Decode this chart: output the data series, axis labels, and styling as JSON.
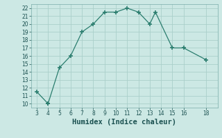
{
  "x": [
    3,
    4,
    4,
    5,
    6,
    7,
    8,
    9,
    10,
    11,
    12,
    13,
    13.5,
    15,
    16,
    18
  ],
  "y": [
    11.5,
    10,
    10,
    14.5,
    16,
    19,
    20,
    21.5,
    21.5,
    22,
    21.5,
    20,
    21.5,
    17,
    17,
    15.5
  ],
  "line_color": "#2a7d6e",
  "marker": "+",
  "marker_size": 4,
  "marker_lw": 1.2,
  "bg_color": "#cce8e4",
  "grid_color": "#aacfca",
  "xlabel": "Humidex (Indice chaleur)",
  "xlim": [
    2.5,
    19.0
  ],
  "ylim": [
    9.5,
    22.5
  ],
  "xticks": [
    3,
    4,
    5,
    6,
    7,
    8,
    9,
    10,
    11,
    12,
    13,
    14,
    15,
    16,
    18
  ],
  "yticks": [
    10,
    11,
    12,
    13,
    14,
    15,
    16,
    17,
    18,
    19,
    20,
    21,
    22
  ],
  "tick_fontsize": 5.5,
  "xlabel_fontsize": 7.5,
  "line_width": 0.9
}
